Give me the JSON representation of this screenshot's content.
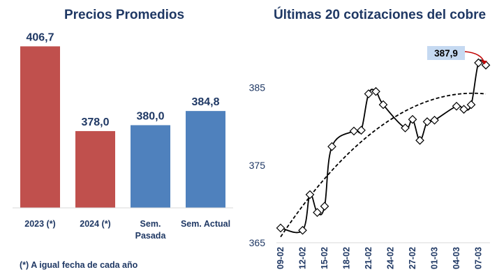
{
  "chart_data": [
    {
      "type": "bar",
      "title": "Precios Promedios",
      "categories": [
        "2023 (*)",
        "2024 (*)",
        "Sem. Pasada",
        "Sem. Actual"
      ],
      "category_lines": [
        [
          "2023 (*)"
        ],
        [
          "2024 (*)"
        ],
        [
          "Sem.",
          "Pasada"
        ],
        [
          "Sem. Actual"
        ]
      ],
      "values": [
        406.7,
        378.0,
        380.0,
        384.8
      ],
      "value_labels": [
        "406,7",
        "378,0",
        "380,0",
        "384,8"
      ],
      "colors": [
        "#c0504d",
        "#c0504d",
        "#4f81bd",
        "#4f81bd"
      ],
      "ylim": [
        352,
        412
      ],
      "footnote": "(*) A igual fecha de cada año"
    },
    {
      "type": "line",
      "title": "Últimas 20 cotizaciones del cobre",
      "x": [
        "09-02",
        "10-02",
        "11-02",
        "12-02",
        "13-02",
        "14-02",
        "15-02",
        "16-02",
        "17-02",
        "18-02",
        "19-02",
        "20-02",
        "21-02",
        "22-02",
        "23-02",
        "24-02",
        "25-02",
        "26-02",
        "27-02",
        "28-02",
        "29-02",
        "01-03",
        "02-03",
        "03-03",
        "04-03",
        "05-03",
        "06-03",
        "07-03",
        "08-03"
      ],
      "x_tick_labels": [
        "09-02",
        "12-02",
        "15-02",
        "18-02",
        "21-02",
        "24-02",
        "27-02",
        "01-03",
        "04-03",
        "07-03"
      ],
      "series": [
        {
          "values": [
            [
              0,
              366.9
            ],
            [
              3,
              366.6
            ],
            [
              4,
              371.2
            ],
            [
              5,
              368.9
            ],
            [
              6,
              369.7
            ],
            [
              7,
              377.4
            ],
            [
              10,
              379.4
            ],
            [
              11,
              379.5
            ],
            [
              12,
              384.2
            ],
            [
              13,
              384.5
            ],
            [
              14,
              382.8
            ],
            [
              17,
              379.8
            ],
            [
              18,
              380.9
            ],
            [
              19,
              378.2
            ],
            [
              20,
              380.6
            ],
            [
              21,
              380.8
            ],
            [
              24,
              382.6
            ],
            [
              25,
              382.2
            ],
            [
              26,
              382.8
            ],
            [
              27,
              388.2
            ],
            [
              28,
              387.9
            ]
          ],
          "color": "#000000",
          "marker": "diamond"
        }
      ],
      "trendline": {
        "type": "polynomial",
        "style": "dashed",
        "color": "#000000"
      },
      "ylim": [
        365,
        390
      ],
      "yticks": [
        365,
        375,
        385
      ],
      "last_value_label": "387,9",
      "last_value_label_bg": "#c5d9f1",
      "arrow_color": "#c00000"
    }
  ]
}
